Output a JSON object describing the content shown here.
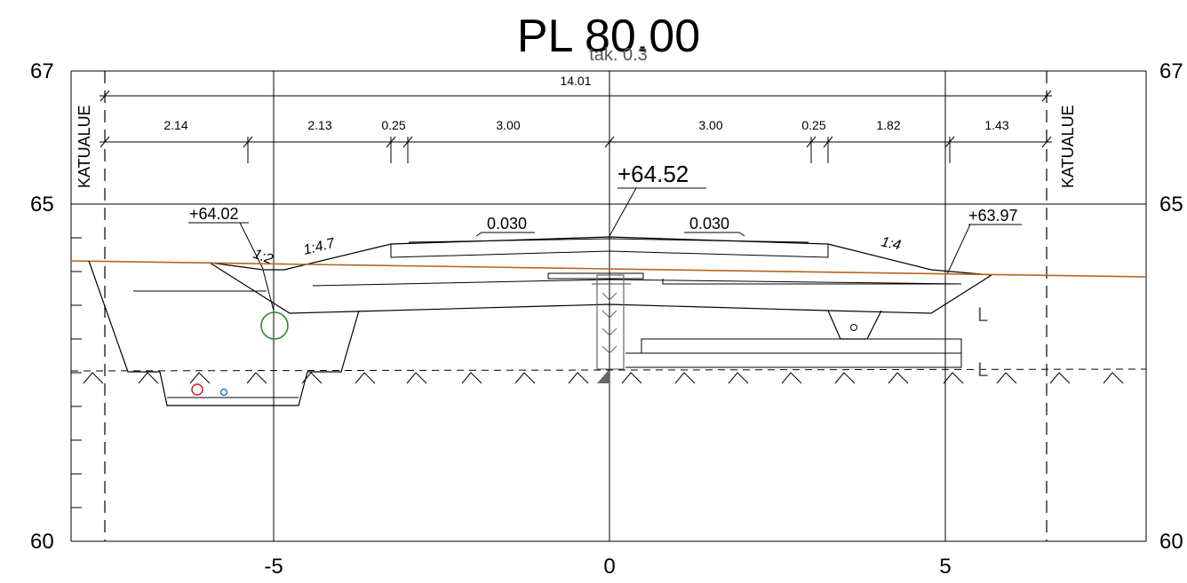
{
  "title": "PL 80.00",
  "subtitle": "tak. 0.3",
  "y_axis": {
    "top": "67",
    "mid": "65",
    "bottom": "60"
  },
  "x_axis": {
    "left": "-5",
    "center": "0",
    "right": "5"
  },
  "zones": {
    "left": "KATUALUE",
    "right": "KATUALUE"
  },
  "dimensions": {
    "total": "14.01",
    "segments": [
      "2.14",
      "2.13",
      "0.25",
      "3.00",
      "3.00",
      "0.25",
      "1.82",
      "1.43"
    ]
  },
  "elevations": {
    "center": "+64.52",
    "left": "+64.02",
    "right": "+63.97"
  },
  "crossfall": {
    "left": "0.030",
    "right": "0.030"
  },
  "slopes": {
    "left_inner": "1:2",
    "left_outer": "1:4.7",
    "right": "1:4"
  },
  "markers": {
    "upper": "L",
    "lower": "L"
  },
  "colors": {
    "ground_line": "#b5651d",
    "green_pipe": "#2e8b2e",
    "red_pipe": "#d62020",
    "blue_pipe": "#2060c0",
    "support": "#666666"
  }
}
